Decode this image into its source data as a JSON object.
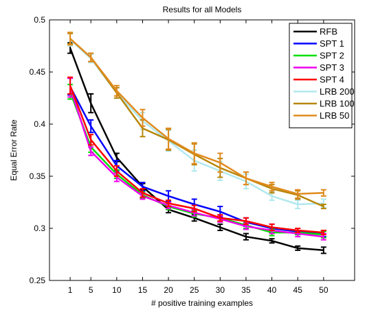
{
  "chart_data": {
    "type": "line",
    "title": "Results for all Models",
    "xlabel": "# positive training examples",
    "ylabel": "Equal Error Rate",
    "x": [
      1,
      5,
      10,
      15,
      20,
      25,
      30,
      35,
      40,
      45,
      50
    ],
    "xlim": [
      -3,
      56
    ],
    "ylim": [
      0.25,
      0.5
    ],
    "yticks": [
      0.25,
      0.3,
      0.35,
      0.4,
      0.45,
      0.5
    ],
    "yticklabels": [
      "0.25",
      "0.3",
      "0.35",
      "0.4",
      "0.45",
      "0.5"
    ],
    "grid": false,
    "legend_position": "top-right",
    "series": [
      {
        "name": "RFB",
        "color": "#000000",
        "values": [
          0.473,
          0.42,
          0.368,
          0.34,
          0.318,
          0.31,
          0.301,
          0.292,
          0.288,
          0.281,
          0.279
        ],
        "err": [
          0.005,
          0.009,
          0.004,
          0.003,
          0.003,
          0.003,
          0.003,
          0.003,
          0.002,
          0.002,
          0.003
        ]
      },
      {
        "name": "SPT 1",
        "color": "#0000ff",
        "values": [
          0.436,
          0.398,
          0.36,
          0.34,
          0.331,
          0.323,
          0.316,
          0.306,
          0.3,
          0.297,
          0.295
        ],
        "err": [
          0.008,
          0.006,
          0.005,
          0.004,
          0.005,
          0.005,
          0.005,
          0.004,
          0.004,
          0.003,
          0.003
        ]
      },
      {
        "name": "SPT 2",
        "color": "#00e000",
        "values": [
          0.431,
          0.378,
          0.352,
          0.332,
          0.321,
          0.314,
          0.31,
          0.303,
          0.296,
          0.296,
          0.294
        ],
        "err": [
          0.007,
          0.005,
          0.004,
          0.003,
          0.003,
          0.003,
          0.003,
          0.003,
          0.003,
          0.002,
          0.003
        ]
      },
      {
        "name": "SPT 3",
        "color": "#ee00ee",
        "values": [
          0.435,
          0.374,
          0.349,
          0.331,
          0.322,
          0.315,
          0.309,
          0.302,
          0.298,
          0.295,
          0.292
        ],
        "err": [
          0.009,
          0.004,
          0.004,
          0.003,
          0.003,
          0.003,
          0.003,
          0.003,
          0.003,
          0.003,
          0.003
        ]
      },
      {
        "name": "SPT 4",
        "color": "#ff0000",
        "values": [
          0.437,
          0.385,
          0.355,
          0.334,
          0.324,
          0.319,
          0.31,
          0.307,
          0.301,
          0.298,
          0.296
        ],
        "err": [
          0.008,
          0.005,
          0.005,
          0.004,
          0.003,
          0.003,
          0.003,
          0.003,
          0.003,
          0.002,
          0.002
        ]
      },
      {
        "name": "LRB 200",
        "color": "#b0e8ee",
        "values": [
          0.481,
          0.463,
          0.43,
          0.403,
          0.384,
          0.365,
          0.355,
          0.345,
          0.331,
          0.323,
          0.324
        ],
        "err": [
          0.006,
          0.004,
          0.005,
          0.008,
          0.01,
          0.01,
          0.009,
          0.007,
          0.004,
          0.004,
          0.004
        ]
      },
      {
        "name": "LRB 100",
        "color": "#b8860b",
        "values": [
          0.482,
          0.464,
          0.43,
          0.396,
          0.385,
          0.371,
          0.358,
          0.348,
          0.338,
          0.332,
          0.321
        ],
        "err": [
          0.005,
          0.004,
          0.005,
          0.008,
          0.01,
          0.01,
          0.009,
          0.006,
          0.004,
          0.004,
          0.002
        ]
      },
      {
        "name": "LRB 50",
        "color": "#e08a1e",
        "values": [
          0.482,
          0.464,
          0.432,
          0.406,
          0.386,
          0.372,
          0.363,
          0.348,
          0.34,
          0.333,
          0.334
        ],
        "err": [
          0.006,
          0.004,
          0.005,
          0.008,
          0.01,
          0.01,
          0.009,
          0.006,
          0.004,
          0.004,
          0.003
        ]
      }
    ]
  }
}
